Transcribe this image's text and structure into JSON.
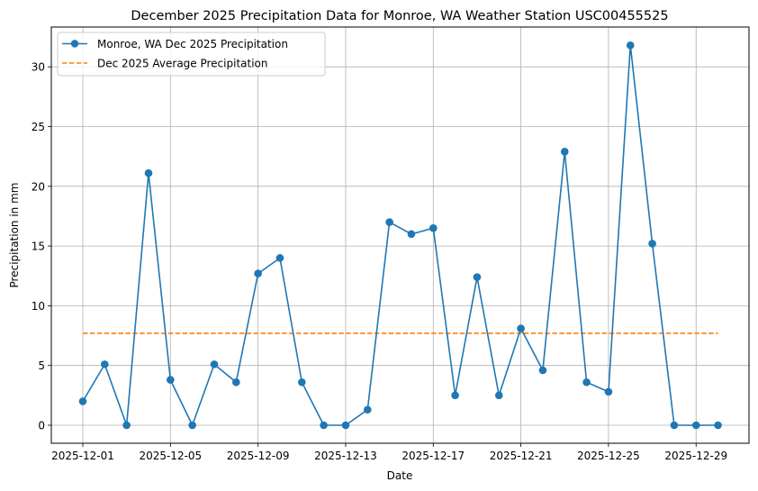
{
  "chart_data": {
    "type": "line",
    "title": "December 2025 Precipitation Data for Monroe, WA Weather Station USC00455525",
    "xlabel": "Date",
    "ylabel": "Precipitation in mm",
    "x": [
      "2025-12-01",
      "2025-12-02",
      "2025-12-03",
      "2025-12-04",
      "2025-12-05",
      "2025-12-06",
      "2025-12-07",
      "2025-12-08",
      "2025-12-09",
      "2025-12-10",
      "2025-12-11",
      "2025-12-12",
      "2025-12-13",
      "2025-12-14",
      "2025-12-15",
      "2025-12-16",
      "2025-12-17",
      "2025-12-18",
      "2025-12-19",
      "2025-12-20",
      "2025-12-21",
      "2025-12-22",
      "2025-12-23",
      "2025-12-24",
      "2025-12-25",
      "2025-12-26",
      "2025-12-27",
      "2025-12-28",
      "2025-12-29",
      "2025-12-30"
    ],
    "series": [
      {
        "name": "Monroe, WA Dec 2025 Precipitation",
        "style": "line-marker",
        "color": "#1f77b4",
        "values": [
          2.0,
          5.1,
          0.0,
          21.1,
          3.8,
          0.0,
          5.1,
          3.6,
          12.7,
          14.0,
          3.6,
          0.0,
          0.0,
          1.3,
          17.0,
          16.0,
          16.5,
          2.5,
          12.4,
          2.5,
          8.1,
          4.6,
          22.9,
          3.6,
          2.8,
          31.8,
          15.2,
          0.0,
          0.0,
          0.0
        ]
      },
      {
        "name": "Dec 2025 Average Precipitation",
        "style": "dashed",
        "color": "#ff7f0e",
        "values": [
          7.7,
          7.7,
          7.7,
          7.7,
          7.7,
          7.7,
          7.7,
          7.7,
          7.7,
          7.7,
          7.7,
          7.7,
          7.7,
          7.7,
          7.7,
          7.7,
          7.7,
          7.7,
          7.7,
          7.7,
          7.7,
          7.7,
          7.7,
          7.7,
          7.7,
          7.7,
          7.7,
          7.7,
          7.7,
          7.7
        ]
      }
    ],
    "x_tick_labels": [
      "2025-12-01",
      "2025-12-05",
      "2025-12-09",
      "2025-12-13",
      "2025-12-17",
      "2025-12-21",
      "2025-12-25",
      "2025-12-29"
    ],
    "x_tick_indices": [
      0,
      4,
      8,
      12,
      16,
      20,
      24,
      28
    ],
    "y_ticks": [
      0,
      5,
      10,
      15,
      20,
      25,
      30
    ],
    "ylim": [
      -1.6,
      33.4
    ],
    "grid": true,
    "legend_position": "upper left"
  }
}
